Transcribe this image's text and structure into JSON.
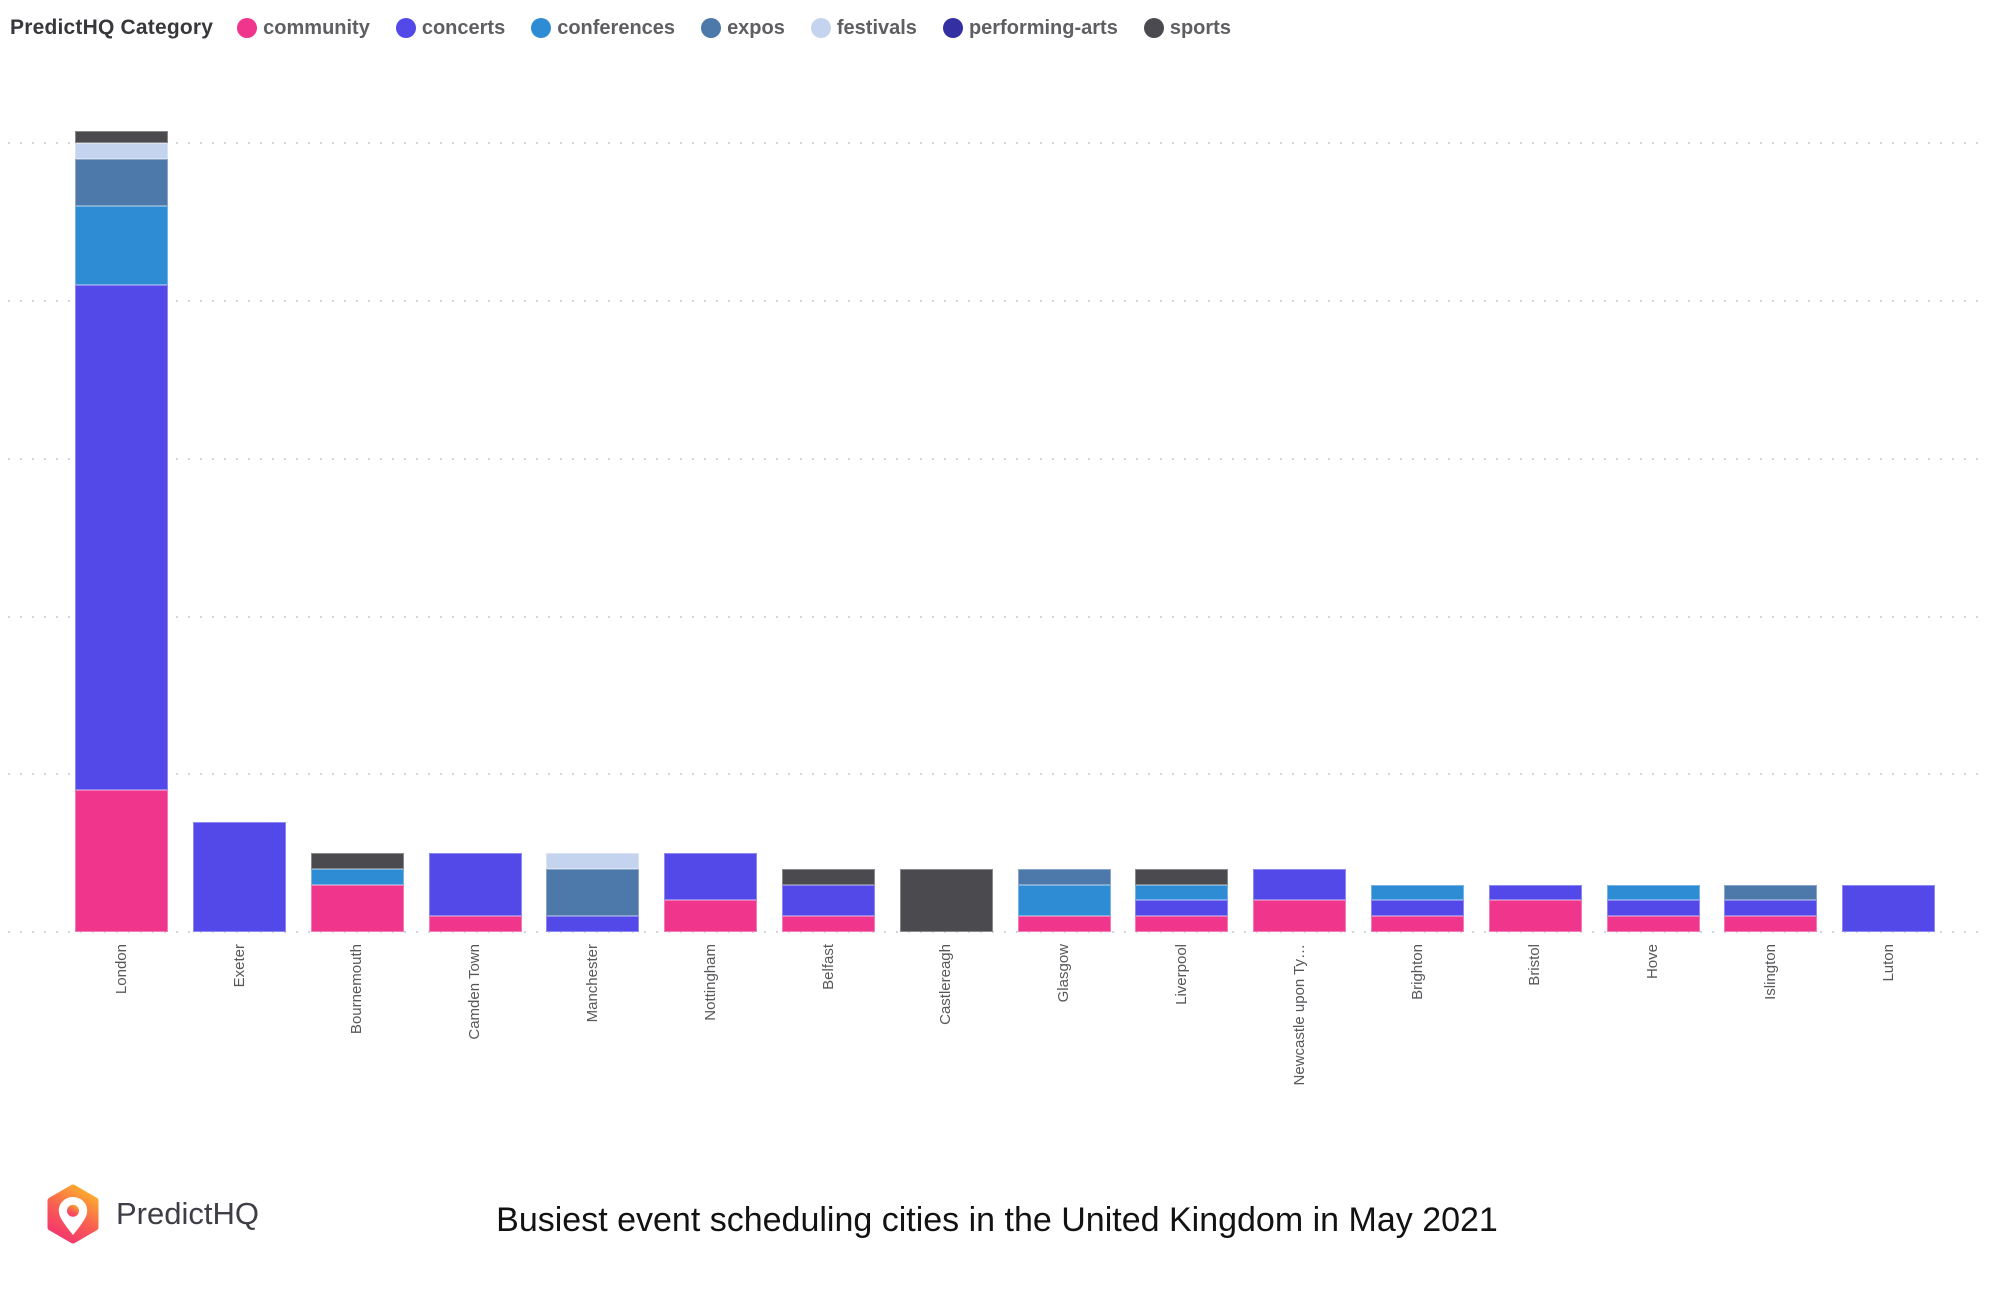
{
  "legend": {
    "title": "PredictHQ Category",
    "items": [
      {
        "label": "community",
        "color": "#F0358C"
      },
      {
        "label": "concerts",
        "color": "#5349E8"
      },
      {
        "label": "conferences",
        "color": "#2E8CD5"
      },
      {
        "label": "expos",
        "color": "#4C79A9"
      },
      {
        "label": "festivals",
        "color": "#C5D4EE"
      },
      {
        "label": "performing-arts",
        "color": "#3430A3"
      },
      {
        "label": "sports",
        "color": "#4A4A4F"
      }
    ]
  },
  "chart_data": {
    "type": "bar",
    "stacked": true,
    "title": "Busiest event scheduling cities in the United Kingdom in May 2021",
    "categories": [
      "London",
      "Exeter",
      "Bournemouth",
      "Camden Town",
      "Manchester",
      "Nottingham",
      "Belfast",
      "Castlereagh",
      "Glasgow",
      "Liverpool",
      "Newcastle upon Ty…",
      "Brighton",
      "Bristol",
      "Hove",
      "Islington",
      "Luton"
    ],
    "series": [
      {
        "name": "community",
        "color": "#F0358C",
        "values": [
          450,
          0,
          150,
          50,
          0,
          100,
          50,
          0,
          50,
          50,
          100,
          50,
          100,
          50,
          50,
          0
        ]
      },
      {
        "name": "concerts",
        "color": "#5349E8",
        "values": [
          1600,
          350,
          0,
          200,
          50,
          150,
          100,
          0,
          0,
          50,
          100,
          50,
          50,
          50,
          50,
          150
        ]
      },
      {
        "name": "conferences",
        "color": "#2E8CD5",
        "values": [
          250,
          0,
          50,
          0,
          0,
          0,
          0,
          0,
          100,
          50,
          0,
          50,
          0,
          50,
          0,
          0
        ]
      },
      {
        "name": "expos",
        "color": "#4C79A9",
        "values": [
          150,
          0,
          0,
          0,
          150,
          0,
          0,
          0,
          50,
          0,
          0,
          0,
          0,
          0,
          50,
          0
        ]
      },
      {
        "name": "festivals",
        "color": "#C5D4EE",
        "values": [
          50,
          0,
          0,
          0,
          50,
          0,
          0,
          0,
          0,
          0,
          0,
          0,
          0,
          0,
          0,
          0
        ]
      },
      {
        "name": "performing-arts",
        "color": "#3430A3",
        "values": [
          0,
          0,
          0,
          0,
          0,
          0,
          0,
          0,
          0,
          0,
          0,
          0,
          0,
          0,
          0,
          0
        ]
      },
      {
        "name": "sports",
        "color": "#4A4A4F",
        "values": [
          40,
          0,
          50,
          0,
          0,
          0,
          50,
          200,
          0,
          50,
          0,
          0,
          0,
          0,
          0,
          0
        ]
      }
    ],
    "xlabel": "",
    "ylabel": "",
    "ylim": [
      0,
      2600
    ],
    "y_gridline_interval": 500,
    "y_tick_labels_visible": false,
    "grid": "dotted-horizontal",
    "legend_position": "top-left"
  },
  "branding": {
    "logo_text": "PredictHQ"
  }
}
